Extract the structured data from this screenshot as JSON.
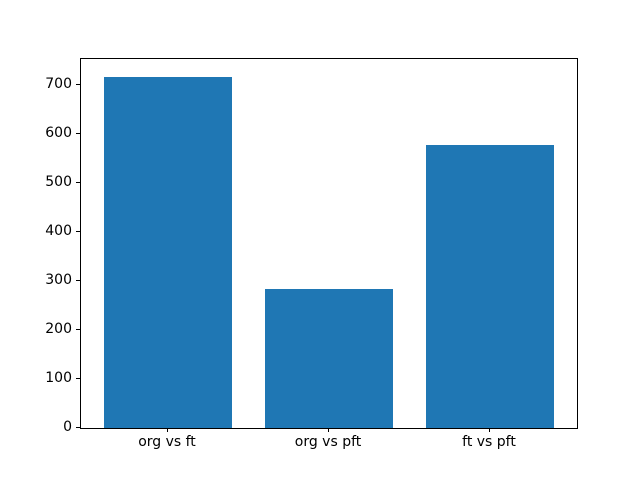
{
  "chart_data": {
    "type": "bar",
    "categories": [
      "org vs ft",
      "org vs pft",
      "ft vs pft"
    ],
    "values": [
      718,
      284,
      578
    ],
    "title": "",
    "xlabel": "",
    "ylabel": "",
    "ylim": [
      0,
      754
    ],
    "yticks": [
      0,
      100,
      200,
      300,
      400,
      500,
      600,
      700
    ],
    "bar_color": "#1f77b4",
    "bar_width": 0.8,
    "grid": false,
    "legend": null,
    "background_color": "#ffffff",
    "frame_color": "#000000"
  }
}
